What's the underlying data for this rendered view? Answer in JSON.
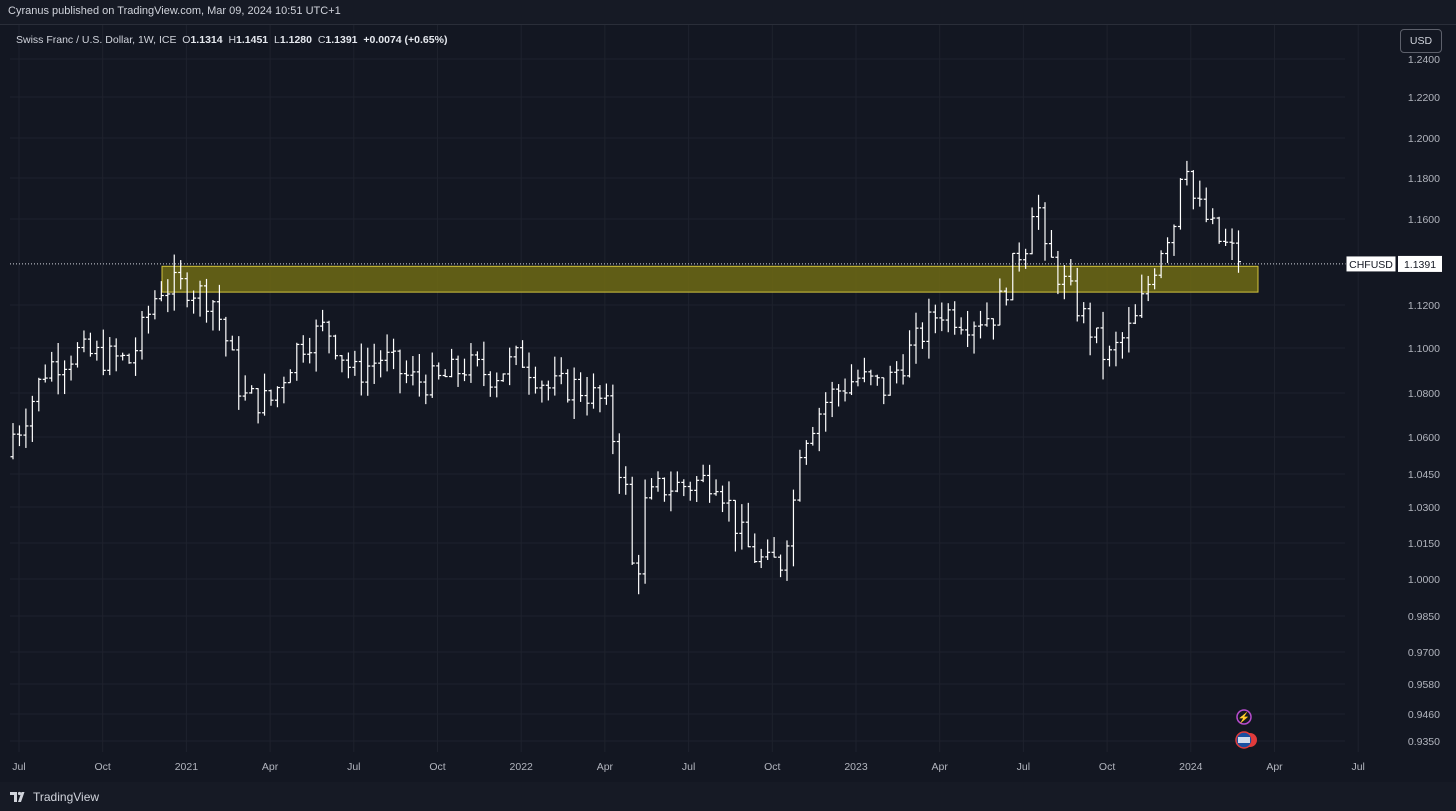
{
  "header": {
    "publish_line": "Cyranus published on TradingView.com, Mar 09, 2024 10:51 UTC+1"
  },
  "legend": {
    "symbol_desc": "Swiss Franc / U.S. Dollar, 1W, ICE",
    "o_label": "O",
    "o_value": "1.1314",
    "h_label": "H",
    "h_value": "1.1451",
    "l_label": "L",
    "l_value": "1.1280",
    "c_label": "C",
    "c_value": "1.1391",
    "change": "+0.0074 (+0.65%)"
  },
  "currency_button": "USD",
  "footer": {
    "brand": "TradingView"
  },
  "colors": {
    "background": "#131722",
    "bars": "#ffffff",
    "zone_fill": "#6e6a14",
    "zone_border": "#d4c53c",
    "grid": "#1e222d",
    "last_price_label_bg": "#ffffff"
  },
  "chart_data": {
    "type": "ohlc",
    "timeframe": "1W",
    "symbol": "CHFUSD",
    "last_price": 1.1391,
    "last_price_label": "1.1391",
    "ylim": [
      0.93,
      1.245
    ],
    "y_ticks": [
      "1.2400",
      "1.2200",
      "1.2000",
      "1.1800",
      "1.1600",
      "1.1200",
      "1.1000",
      "1.0800",
      "1.0600",
      "1.0450",
      "1.0300",
      "1.0150",
      "1.0000",
      "0.9850",
      "0.9700",
      "0.9580",
      "0.9460",
      "0.9350"
    ],
    "x_ticks": [
      "Jul",
      "Oct",
      "2021",
      "Apr",
      "Jul",
      "Oct",
      "2022",
      "Apr",
      "Jul",
      "Oct",
      "2023",
      "Apr",
      "Jul",
      "Oct",
      "2024",
      "Apr",
      "Jul"
    ],
    "zone": {
      "start": "2020-12",
      "end": "2024-03",
      "top": 1.138,
      "bottom": 1.126
    },
    "path_points": [
      [
        "2020-06",
        1.052
      ],
      [
        "2020-07",
        1.064
      ],
      [
        "2020-08",
        1.092
      ],
      [
        "2020-09",
        1.098
      ],
      [
        "2020-10",
        1.096
      ],
      [
        "2020-11",
        1.094
      ],
      [
        "2020-12",
        1.128
      ],
      [
        "2021-01",
        1.129
      ],
      [
        "2021-02",
        1.122
      ],
      [
        "2021-03",
        1.078
      ],
      [
        "2021-04",
        1.076
      ],
      [
        "2021-05",
        1.101
      ],
      [
        "2021-06",
        1.11
      ],
      [
        "2021-07",
        1.088
      ],
      [
        "2021-08",
        1.096
      ],
      [
        "2021-09",
        1.086
      ],
      [
        "2021-10",
        1.085
      ],
      [
        "2021-11",
        1.092
      ],
      [
        "2021-12",
        1.088
      ],
      [
        "2022-01",
        1.096
      ],
      [
        "2022-02",
        1.082
      ],
      [
        "2022-03",
        1.083
      ],
      [
        "2022-04",
        1.075
      ],
      [
        "2022-05",
        1.024
      ],
      [
        "2022-06",
        1.039
      ],
      [
        "2022-07",
        1.04
      ],
      [
        "2022-08",
        1.044
      ],
      [
        "2022-09",
        1.014
      ],
      [
        "2022-10",
        1.003
      ],
      [
        "2022-11",
        1.058
      ],
      [
        "2022-12",
        1.078
      ],
      [
        "2023-01",
        1.087
      ],
      [
        "2023-02",
        1.082
      ],
      [
        "2023-03",
        1.1
      ],
      [
        "2023-04",
        1.118
      ],
      [
        "2023-05",
        1.113
      ],
      [
        "2023-06",
        1.116
      ],
      [
        "2023-07",
        1.15
      ],
      [
        "2023-08",
        1.14
      ],
      [
        "2023-09",
        1.118
      ],
      [
        "2023-10",
        1.094
      ],
      [
        "2023-11",
        1.112
      ],
      [
        "2023-12",
        1.15
      ],
      [
        "2024-01",
        1.172
      ],
      [
        "2024-02",
        1.15
      ],
      [
        "2024-03",
        1.139
      ]
    ]
  }
}
